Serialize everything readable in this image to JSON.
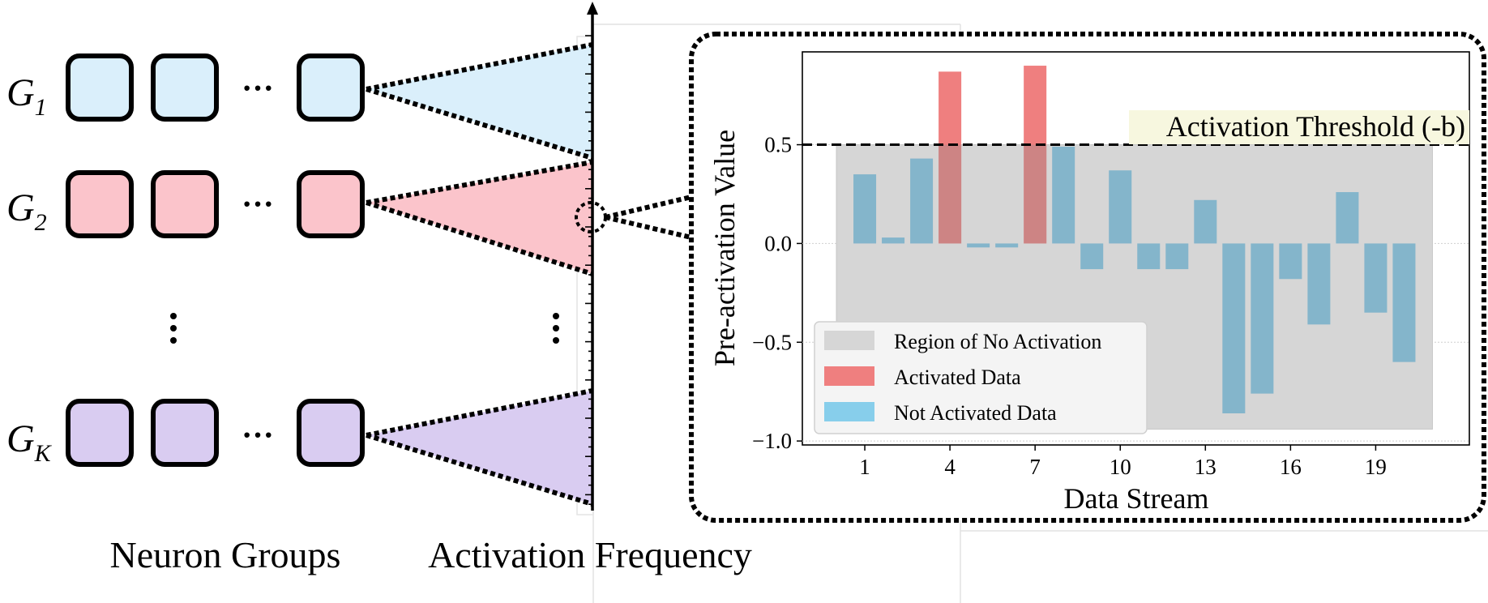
{
  "groups": [
    {
      "letter": "G",
      "sub": "1",
      "color": "#daeffb"
    },
    {
      "letter": "G",
      "sub": "2",
      "color": "#fbc4cb"
    },
    {
      "letter": "G",
      "sub": "K",
      "color": "#d9ccf1"
    }
  ],
  "ellipsis": "···",
  "captions": {
    "neuron_groups": "Neuron Groups",
    "activation_frequency": "Activation Frequency"
  },
  "colors": {
    "activated": "#ef7f7f",
    "not_activated": "#87ceeb",
    "bar_not_activated": "#84b5cb",
    "region": "#d6d6d6",
    "threshold_box": "#f7f7df"
  },
  "chart_data": {
    "type": "bar",
    "xlabel": "Data Stream",
    "ylabel": "Pre-activation Value",
    "xlim": [
      -1.2,
      22.3
    ],
    "ylim": [
      -1.02,
      0.97
    ],
    "xticks": [
      1,
      4,
      7,
      10,
      13,
      16,
      19
    ],
    "yticks": [
      0.5,
      0.0,
      -0.5,
      -1.0
    ],
    "ytick_labels": [
      "0.5",
      "0.0",
      "−0.5",
      "−1.0"
    ],
    "threshold": 0.5,
    "threshold_label": "Activation Threshold (-b)",
    "region": {
      "x_from": 0,
      "x_to": 21,
      "y_from": -0.94,
      "y_to": 0.5
    },
    "x": [
      1,
      2,
      3,
      4,
      5,
      6,
      7,
      8,
      9,
      10,
      11,
      12,
      13,
      14,
      15,
      16,
      17,
      18,
      19,
      20
    ],
    "values": [
      0.35,
      0.03,
      0.43,
      0.87,
      -0.02,
      -0.02,
      0.9,
      0.49,
      -0.13,
      0.37,
      -0.13,
      -0.13,
      0.22,
      -0.86,
      -0.76,
      -0.18,
      -0.41,
      0.26,
      -0.35,
      -0.6
    ],
    "activated_indices": [
      4,
      7
    ],
    "legend": {
      "position": "lower-left",
      "entries": [
        "Region of No Activation",
        "Activated Data",
        "Not Activated Data"
      ]
    }
  }
}
